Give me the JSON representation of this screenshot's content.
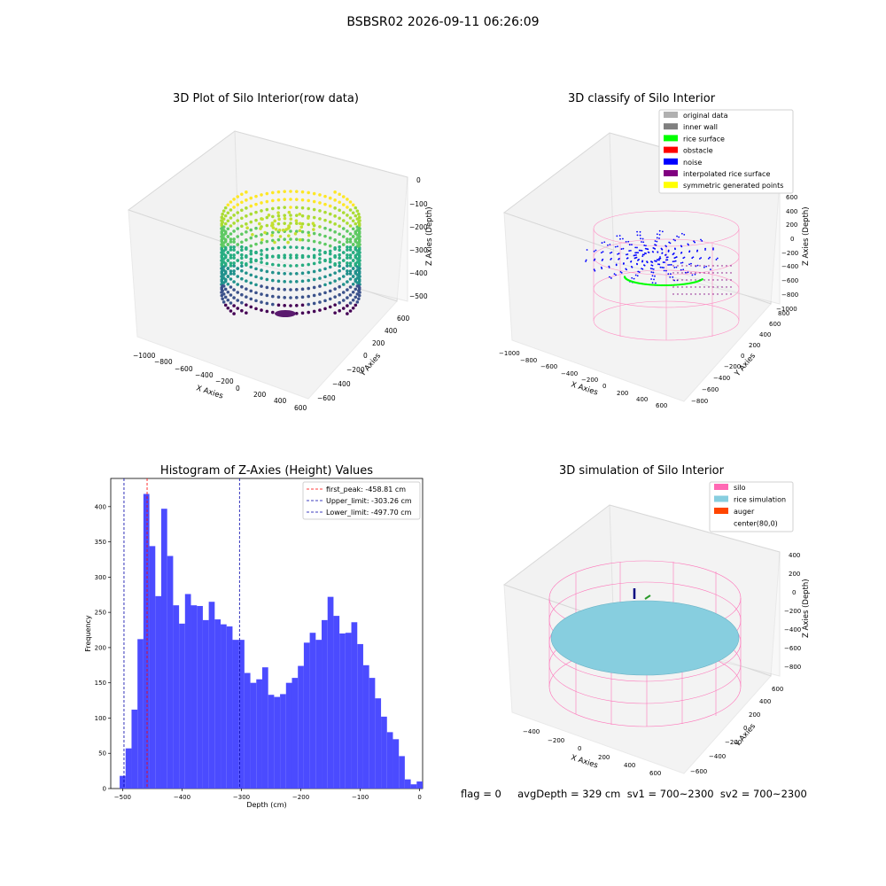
{
  "figure": {
    "suptitle": "BSBSR02 2026-09-11 06:26:09"
  },
  "footer": {
    "text": "flag = 0     avgDepth = 329 cm  sv1 = 700~2300  sv2 = 700~2300"
  },
  "chart_data": [
    {
      "type": "scatter",
      "title": "3D Plot of Silo Interior(row data)",
      "xlabel": "X Axies",
      "ylabel": "Y Axies",
      "zlabel": "Z Axies (Depth)",
      "x_ticks": [
        "−1000",
        "−800",
        "−600",
        "−400",
        "−200",
        "0",
        "200",
        "400",
        "600"
      ],
      "y_ticks": [
        "−600",
        "−400",
        "−200",
        "0",
        "200",
        "400",
        "600"
      ],
      "z_ticks": [
        "0",
        "−100",
        "−200",
        "−300",
        "−400",
        "−500"
      ],
      "xlim": [
        -1000,
        600
      ],
      "ylim": [
        -600,
        600
      ],
      "zlim": [
        -530,
        0
      ],
      "colormap": "viridis"
    },
    {
      "type": "scatter",
      "title": "3D classify of Silo Interior",
      "xlabel": "X Axies",
      "ylabel": "Y Axies",
      "zlabel": "Z Axies (Depth)",
      "x_ticks": [
        "−1000",
        "−800",
        "−600",
        "−400",
        "−200",
        "0",
        "200",
        "400",
        "600"
      ],
      "y_ticks": [
        "−800",
        "−600",
        "−400",
        "−200",
        "0",
        "200",
        "400",
        "600",
        "800"
      ],
      "z_ticks": [
        "600",
        "400",
        "200",
        "0",
        "−200",
        "−400",
        "−600",
        "−800",
        "−1000"
      ],
      "legend": [
        {
          "label": "original data",
          "color": "#b0b0b0"
        },
        {
          "label": "inner wall",
          "color": "#808080"
        },
        {
          "label": "rice surface",
          "color": "#00ff00"
        },
        {
          "label": "obstacle",
          "color": "#ff0000"
        },
        {
          "label": "noise",
          "color": "#0000ff"
        },
        {
          "label": "interpolated rice surface",
          "color": "#800080"
        },
        {
          "label": "symmetric generated points",
          "color": "#ffff00"
        }
      ]
    },
    {
      "type": "bar",
      "title": "Histogram of Z-Axies (Height) Values",
      "xlabel": "Depth (cm)",
      "ylabel": "Frequency",
      "xlim": [
        -520,
        5
      ],
      "ylim": [
        0,
        440
      ],
      "x_ticks": [
        -500,
        -400,
        -300,
        -200,
        -100,
        0
      ],
      "x_tick_labels": [
        "−500",
        "−400",
        "−300",
        "−200",
        "−100",
        "0"
      ],
      "y_ticks": [
        0,
        50,
        100,
        150,
        200,
        250,
        300,
        350,
        400
      ],
      "bin_start": -505,
      "bin_width": 10,
      "values": [
        18,
        57,
        112,
        212,
        418,
        344,
        273,
        397,
        330,
        260,
        234,
        276,
        260,
        259,
        239,
        265,
        240,
        233,
        230,
        211,
        211,
        164,
        150,
        155,
        172,
        133,
        130,
        134,
        150,
        157,
        174,
        207,
        221,
        211,
        239,
        272,
        245,
        220,
        221,
        236,
        205,
        175,
        157,
        128,
        102,
        80,
        70,
        46,
        13,
        6,
        10
      ],
      "bar_color": "#4b4bff",
      "reference_lines": [
        {
          "label": "first_peak: -458.81 cm",
          "value": -458.81,
          "color": "#ff0000"
        },
        {
          "label": "Upper_limit: -303.26 cm",
          "value": -303.26,
          "color": "#0000aa"
        },
        {
          "label": "Lower_limit: -497.70 cm",
          "value": -497.7,
          "color": "#0000aa"
        }
      ]
    },
    {
      "type": "scatter",
      "title": "3D simulation of Silo Interior",
      "xlabel": "X Axies",
      "ylabel": "Y Axies",
      "zlabel": "Z Axies (Depth)",
      "x_ticks": [
        "−400",
        "−200",
        "0",
        "200",
        "400",
        "600"
      ],
      "y_ticks": [
        "−600",
        "−400",
        "−200",
        "0",
        "200",
        "400",
        "600"
      ],
      "z_ticks": [
        "400",
        "200",
        "0",
        "−200",
        "−400",
        "−600",
        "−800"
      ],
      "legend": [
        {
          "label": "silo",
          "color": "#ff69b4"
        },
        {
          "label": "rice simulation",
          "color": "#87cedf"
        },
        {
          "label": "auger",
          "color": "#ff4500"
        },
        {
          "label": "center(80,0)",
          "color": ""
        }
      ]
    }
  ]
}
